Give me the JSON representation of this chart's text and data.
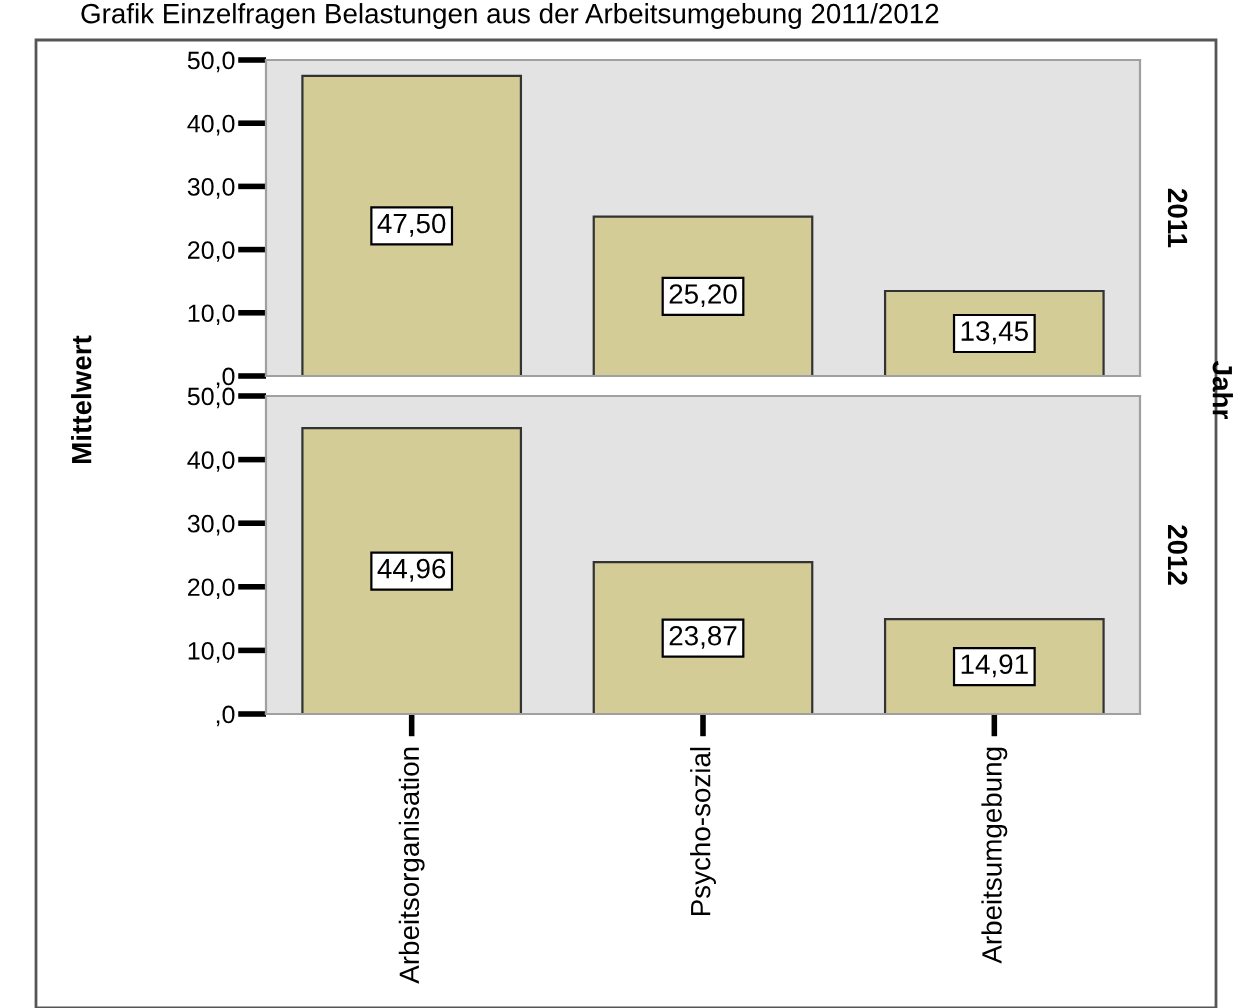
{
  "chart_data": [
    {
      "type": "bar",
      "annotations": [
        "Grafik Einzelfragen Belastungen aus der Arbeitsumgebung 2011/2012",
        "Jahr"
      ],
      "y2label": "2011",
      "ylabel": "Mittelwert",
      "categories": [
        null,
        null,
        null
      ],
      "values": [
        47.5,
        25.2,
        13.45
      ],
      "value_labels": [
        "47,50",
        "25,20",
        "13,45"
      ],
      "color": "#d3cc96",
      "ylim": [
        0,
        50
      ],
      "yticks": [
        {
          "value": 0,
          "label": ",0"
        },
        {
          "value": 10,
          "label": "10,0"
        },
        {
          "value": 20,
          "label": "20,0"
        },
        {
          "value": 30,
          "label": "30,0"
        },
        {
          "value": 40,
          "label": "40,0"
        },
        {
          "value": 50,
          "label": "50,0"
        }
      ],
      "tick_labels": "y"
    },
    {
      "type": "bar",
      "y2label": "2012",
      "categories": [
        "Arbeitsorganisation",
        "Psycho-sozial",
        "Arbeitsumgebung"
      ],
      "values": [
        44.96,
        23.87,
        14.91
      ],
      "value_labels": [
        "44,96",
        "23,87",
        "14,91"
      ],
      "color": "#d3cc96",
      "ylim": [
        0,
        50
      ],
      "yticks": [
        {
          "value": 0,
          "label": ",0"
        },
        {
          "value": 10,
          "label": "10,0"
        },
        {
          "value": 20,
          "label": "20,0"
        },
        {
          "value": 30,
          "label": "30,0"
        },
        {
          "value": 40,
          "label": "40,0"
        },
        {
          "value": 50,
          "label": "50,0"
        }
      ]
    }
  ]
}
